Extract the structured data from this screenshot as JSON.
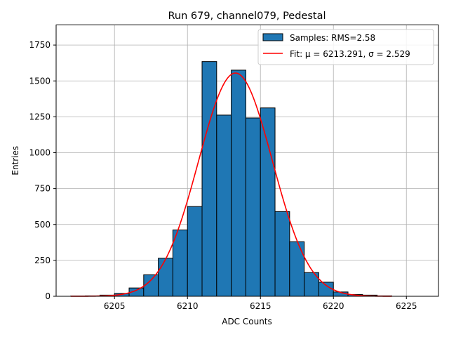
{
  "chart_data": {
    "type": "bar",
    "title": "Run 679, channel079, Pedestal",
    "xlabel": "ADC Counts",
    "ylabel": "Entries",
    "xlim": [
      6201,
      6227.2
    ],
    "ylim": [
      0,
      1890
    ],
    "xticks": [
      6205,
      6210,
      6215,
      6220,
      6225
    ],
    "yticks": [
      0,
      250,
      500,
      750,
      1000,
      1250,
      1500,
      1750
    ],
    "grid": true,
    "legend_position": "top-right",
    "histogram": {
      "name": "Samples: RMS=2.58",
      "color": "#1f77b4",
      "bin_edges": [
        6202,
        6203,
        6204,
        6205,
        6206,
        6207,
        6208,
        6209,
        6210,
        6211,
        6212,
        6213,
        6214,
        6215,
        6216,
        6217,
        6218,
        6219,
        6220,
        6221,
        6222,
        6223,
        6224
      ],
      "counts": [
        2,
        3,
        8,
        20,
        58,
        150,
        265,
        462,
        625,
        1635,
        1262,
        1575,
        1242,
        1312,
        590,
        380,
        165,
        98,
        30,
        12,
        8,
        3
      ]
    },
    "fit": {
      "name": "Fit: μ = 6213.291, σ = 2.529",
      "color": "#ff0000",
      "mu": 6213.291,
      "sigma": 2.529,
      "amplitude": 1555,
      "x_range": [
        6202,
        6224
      ]
    }
  }
}
